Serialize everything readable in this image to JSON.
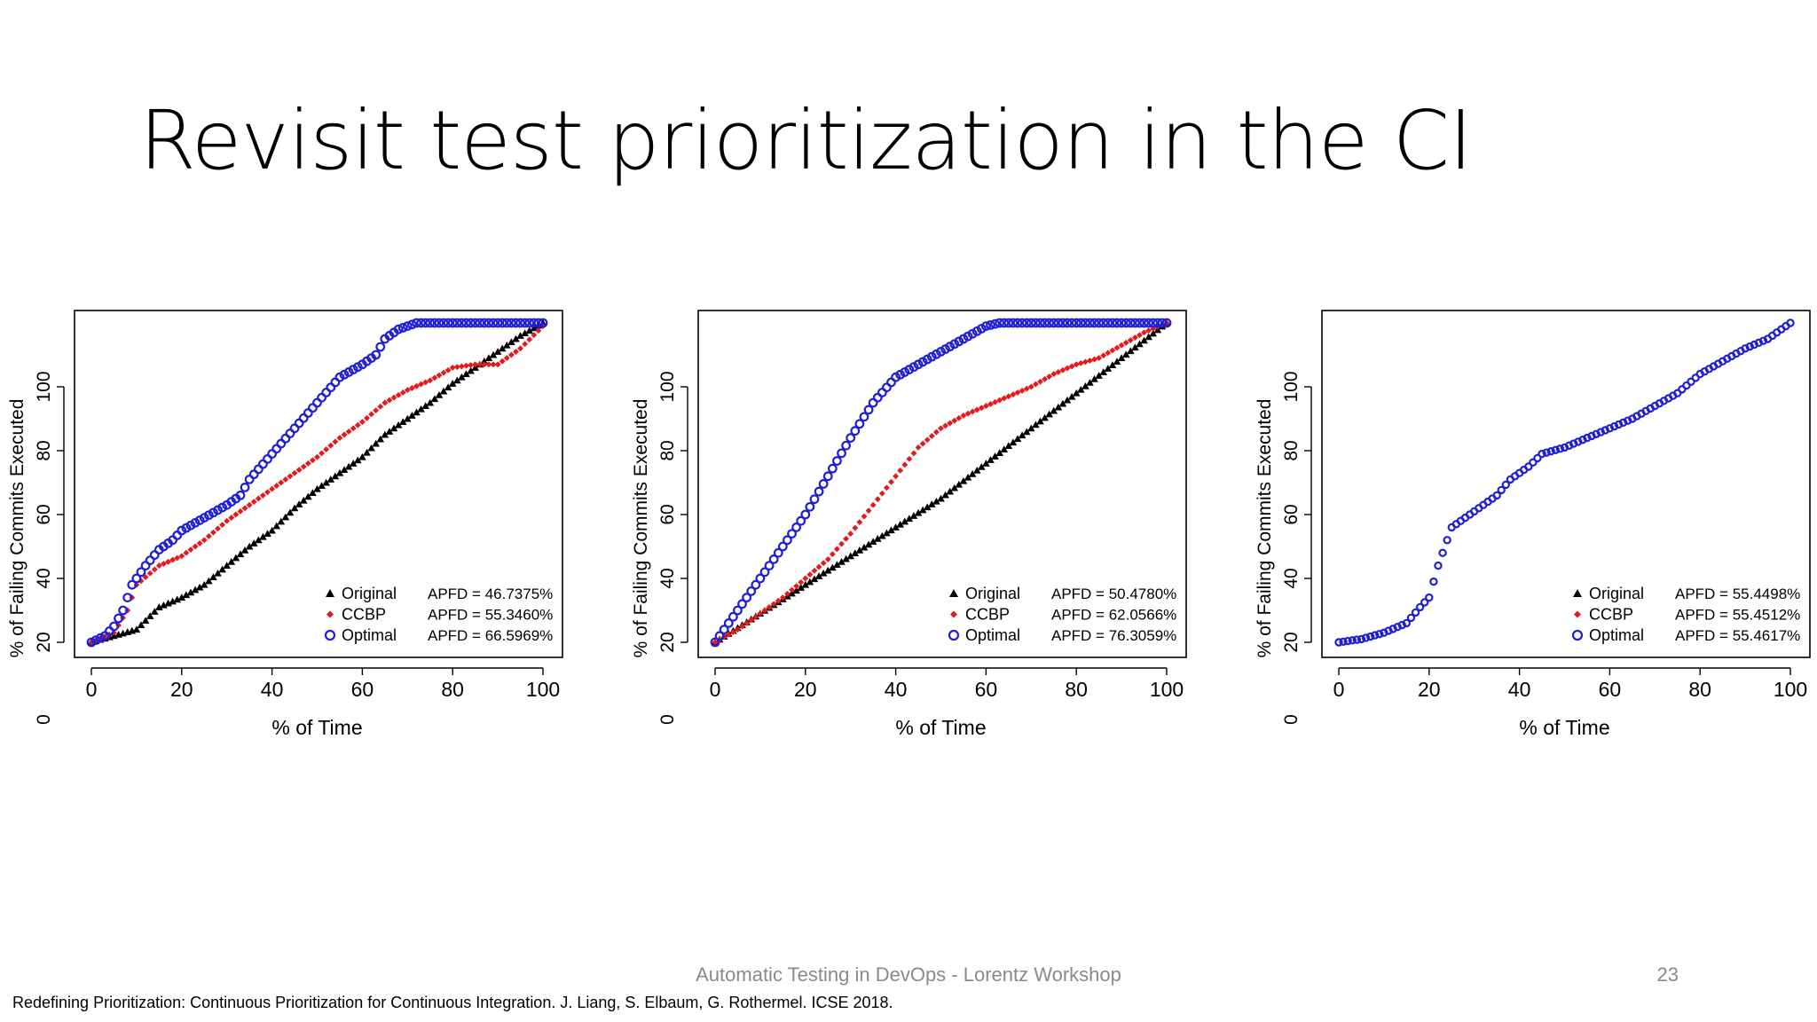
{
  "slide": {
    "title": "Revisit test prioritization in the CI",
    "footer": "Automatic Testing in DevOps - Lorentz Workshop",
    "page_number": "23",
    "reference": "Redefining Prioritization: Continuous Prioritization for Continuous Integration. J. Liang, S. Elbaum, G. Rothermel. ICSE 2018."
  },
  "chart_data": [
    {
      "type": "scatter",
      "xlabel": "% of Time",
      "ylabel": "% of Failing Commits Executed",
      "xlim": [
        0,
        100
      ],
      "ylim": [
        20,
        120
      ],
      "x_ticks": [
        "0",
        "20",
        "40",
        "60",
        "80",
        "100"
      ],
      "y_ticks": [
        "20",
        "40",
        "60",
        "80",
        "100"
      ],
      "y_origin_label": "0",
      "grid": false,
      "legend_position": "bottom-right",
      "series": [
        {
          "name": "Original",
          "marker": "triangle",
          "color": "#000000",
          "apfd": "APFD = 46.7375%",
          "points": [
            [
              0,
              20
            ],
            [
              5,
              22
            ],
            [
              10,
              24
            ],
            [
              15,
              31
            ],
            [
              20,
              34
            ],
            [
              25,
              38
            ],
            [
              30,
              44
            ],
            [
              35,
              50
            ],
            [
              40,
              55
            ],
            [
              45,
              62
            ],
            [
              50,
              68
            ],
            [
              55,
              73
            ],
            [
              60,
              78
            ],
            [
              65,
              85
            ],
            [
              70,
              90
            ],
            [
              75,
              95
            ],
            [
              80,
              101
            ],
            [
              85,
              106
            ],
            [
              90,
              111
            ],
            [
              95,
              116
            ],
            [
              100,
              120
            ]
          ]
        },
        {
          "name": "CCBP",
          "marker": "diamond",
          "color": "#e41a1c",
          "apfd": "APFD = 55.3460%",
          "points": [
            [
              0,
              20
            ],
            [
              5,
              23
            ],
            [
              8,
              30
            ],
            [
              10,
              38
            ],
            [
              15,
              44
            ],
            [
              20,
              47
            ],
            [
              25,
              52
            ],
            [
              30,
              58
            ],
            [
              35,
              63
            ],
            [
              40,
              68
            ],
            [
              45,
              73
            ],
            [
              50,
              78
            ],
            [
              55,
              84
            ],
            [
              60,
              89
            ],
            [
              65,
              95
            ],
            [
              70,
              99
            ],
            [
              75,
              102
            ],
            [
              80,
              106
            ],
            [
              85,
              107
            ],
            [
              90,
              107
            ],
            [
              95,
              112
            ],
            [
              100,
              119
            ]
          ]
        },
        {
          "name": "Optimal",
          "marker": "circle",
          "color": "#1f1fd6",
          "apfd": "APFD = 66.5969%",
          "points": [
            [
              0,
              20
            ],
            [
              3,
              22
            ],
            [
              5,
              25
            ],
            [
              7,
              30
            ],
            [
              9,
              38
            ],
            [
              12,
              44
            ],
            [
              15,
              49
            ],
            [
              18,
              52
            ],
            [
              20,
              55
            ],
            [
              25,
              59
            ],
            [
              30,
              63
            ],
            [
              33,
              66
            ],
            [
              35,
              71
            ],
            [
              40,
              79
            ],
            [
              45,
              87
            ],
            [
              50,
              95
            ],
            [
              55,
              103
            ],
            [
              60,
              107
            ],
            [
              63,
              110
            ],
            [
              65,
              115
            ],
            [
              68,
              118
            ],
            [
              72,
              120
            ],
            [
              75,
              120
            ],
            [
              80,
              120
            ],
            [
              85,
              120
            ],
            [
              90,
              120
            ],
            [
              95,
              120
            ],
            [
              100,
              120
            ]
          ]
        }
      ]
    },
    {
      "type": "scatter",
      "xlabel": "% of Time",
      "ylabel": "% of Failing Commits Executed",
      "xlim": [
        0,
        100
      ],
      "ylim": [
        20,
        120
      ],
      "x_ticks": [
        "0",
        "20",
        "40",
        "60",
        "80",
        "100"
      ],
      "y_ticks": [
        "20",
        "40",
        "60",
        "80",
        "100"
      ],
      "y_origin_label": "0",
      "grid": false,
      "legend_position": "bottom-right",
      "series": [
        {
          "name": "Original",
          "marker": "triangle",
          "color": "#000000",
          "apfd": "APFD = 50.4780%",
          "points": [
            [
              0,
              20
            ],
            [
              10,
              29
            ],
            [
              20,
              38
            ],
            [
              30,
              47
            ],
            [
              40,
              56
            ],
            [
              50,
              65
            ],
            [
              60,
              76
            ],
            [
              70,
              87
            ],
            [
              80,
              98
            ],
            [
              90,
              109
            ],
            [
              100,
              120
            ]
          ]
        },
        {
          "name": "CCBP",
          "marker": "diamond",
          "color": "#e41a1c",
          "apfd": "APFD = 62.0566%",
          "points": [
            [
              0,
              20
            ],
            [
              5,
              24
            ],
            [
              10,
              29
            ],
            [
              15,
              34
            ],
            [
              20,
              40
            ],
            [
              25,
              46
            ],
            [
              30,
              54
            ],
            [
              35,
              63
            ],
            [
              40,
              72
            ],
            [
              45,
              81
            ],
            [
              50,
              87
            ],
            [
              55,
              91
            ],
            [
              60,
              94
            ],
            [
              65,
              97
            ],
            [
              70,
              100
            ],
            [
              75,
              104
            ],
            [
              80,
              107
            ],
            [
              85,
              109
            ],
            [
              90,
              113
            ],
            [
              95,
              117
            ],
            [
              100,
              120
            ]
          ]
        },
        {
          "name": "Optimal",
          "marker": "circle",
          "color": "#1f1fd6",
          "apfd": "APFD = 76.3059%",
          "points": [
            [
              0,
              20
            ],
            [
              5,
              30
            ],
            [
              10,
              40
            ],
            [
              15,
              50
            ],
            [
              20,
              60
            ],
            [
              25,
              72
            ],
            [
              30,
              84
            ],
            [
              35,
              95
            ],
            [
              40,
              103
            ],
            [
              45,
              107
            ],
            [
              50,
              111
            ],
            [
              55,
              115
            ],
            [
              60,
              119
            ],
            [
              63,
              120
            ],
            [
              70,
              120
            ],
            [
              80,
              120
            ],
            [
              90,
              120
            ],
            [
              100,
              120
            ]
          ]
        }
      ]
    },
    {
      "type": "scatter",
      "xlabel": "% of Time",
      "ylabel": "% of Failing Commits Executed",
      "xlim": [
        0,
        100
      ],
      "ylim": [
        20,
        120
      ],
      "x_ticks": [
        "0",
        "20",
        "40",
        "60",
        "80",
        "100"
      ],
      "y_ticks": [
        "20",
        "40",
        "60",
        "80",
        "100"
      ],
      "y_origin_label": "0",
      "grid": false,
      "legend_position": "bottom-right",
      "series": [
        {
          "name": "Original",
          "marker": "triangle",
          "color": "#000000",
          "apfd": "APFD = 55.4498%",
          "points": []
        },
        {
          "name": "CCBP",
          "marker": "diamond",
          "color": "#e41a1c",
          "apfd": "APFD = 55.4512%",
          "points": []
        },
        {
          "name": "Optimal",
          "marker": "circle",
          "color": "#1f1fd6",
          "apfd": "APFD = 55.4617%",
          "points": [
            [
              0,
              20
            ],
            [
              5,
              21
            ],
            [
              10,
              23
            ],
            [
              15,
              26
            ],
            [
              18,
              31
            ],
            [
              20,
              34
            ],
            [
              22,
              44
            ],
            [
              25,
              56
            ],
            [
              30,
              61
            ],
            [
              35,
              66
            ],
            [
              38,
              71
            ],
            [
              42,
              75
            ],
            [
              45,
              79
            ],
            [
              50,
              81
            ],
            [
              55,
              84
            ],
            [
              60,
              87
            ],
            [
              65,
              90
            ],
            [
              70,
              94
            ],
            [
              75,
              98
            ],
            [
              80,
              104
            ],
            [
              85,
              108
            ],
            [
              90,
              112
            ],
            [
              95,
              115
            ],
            [
              100,
              120
            ]
          ]
        }
      ]
    }
  ]
}
